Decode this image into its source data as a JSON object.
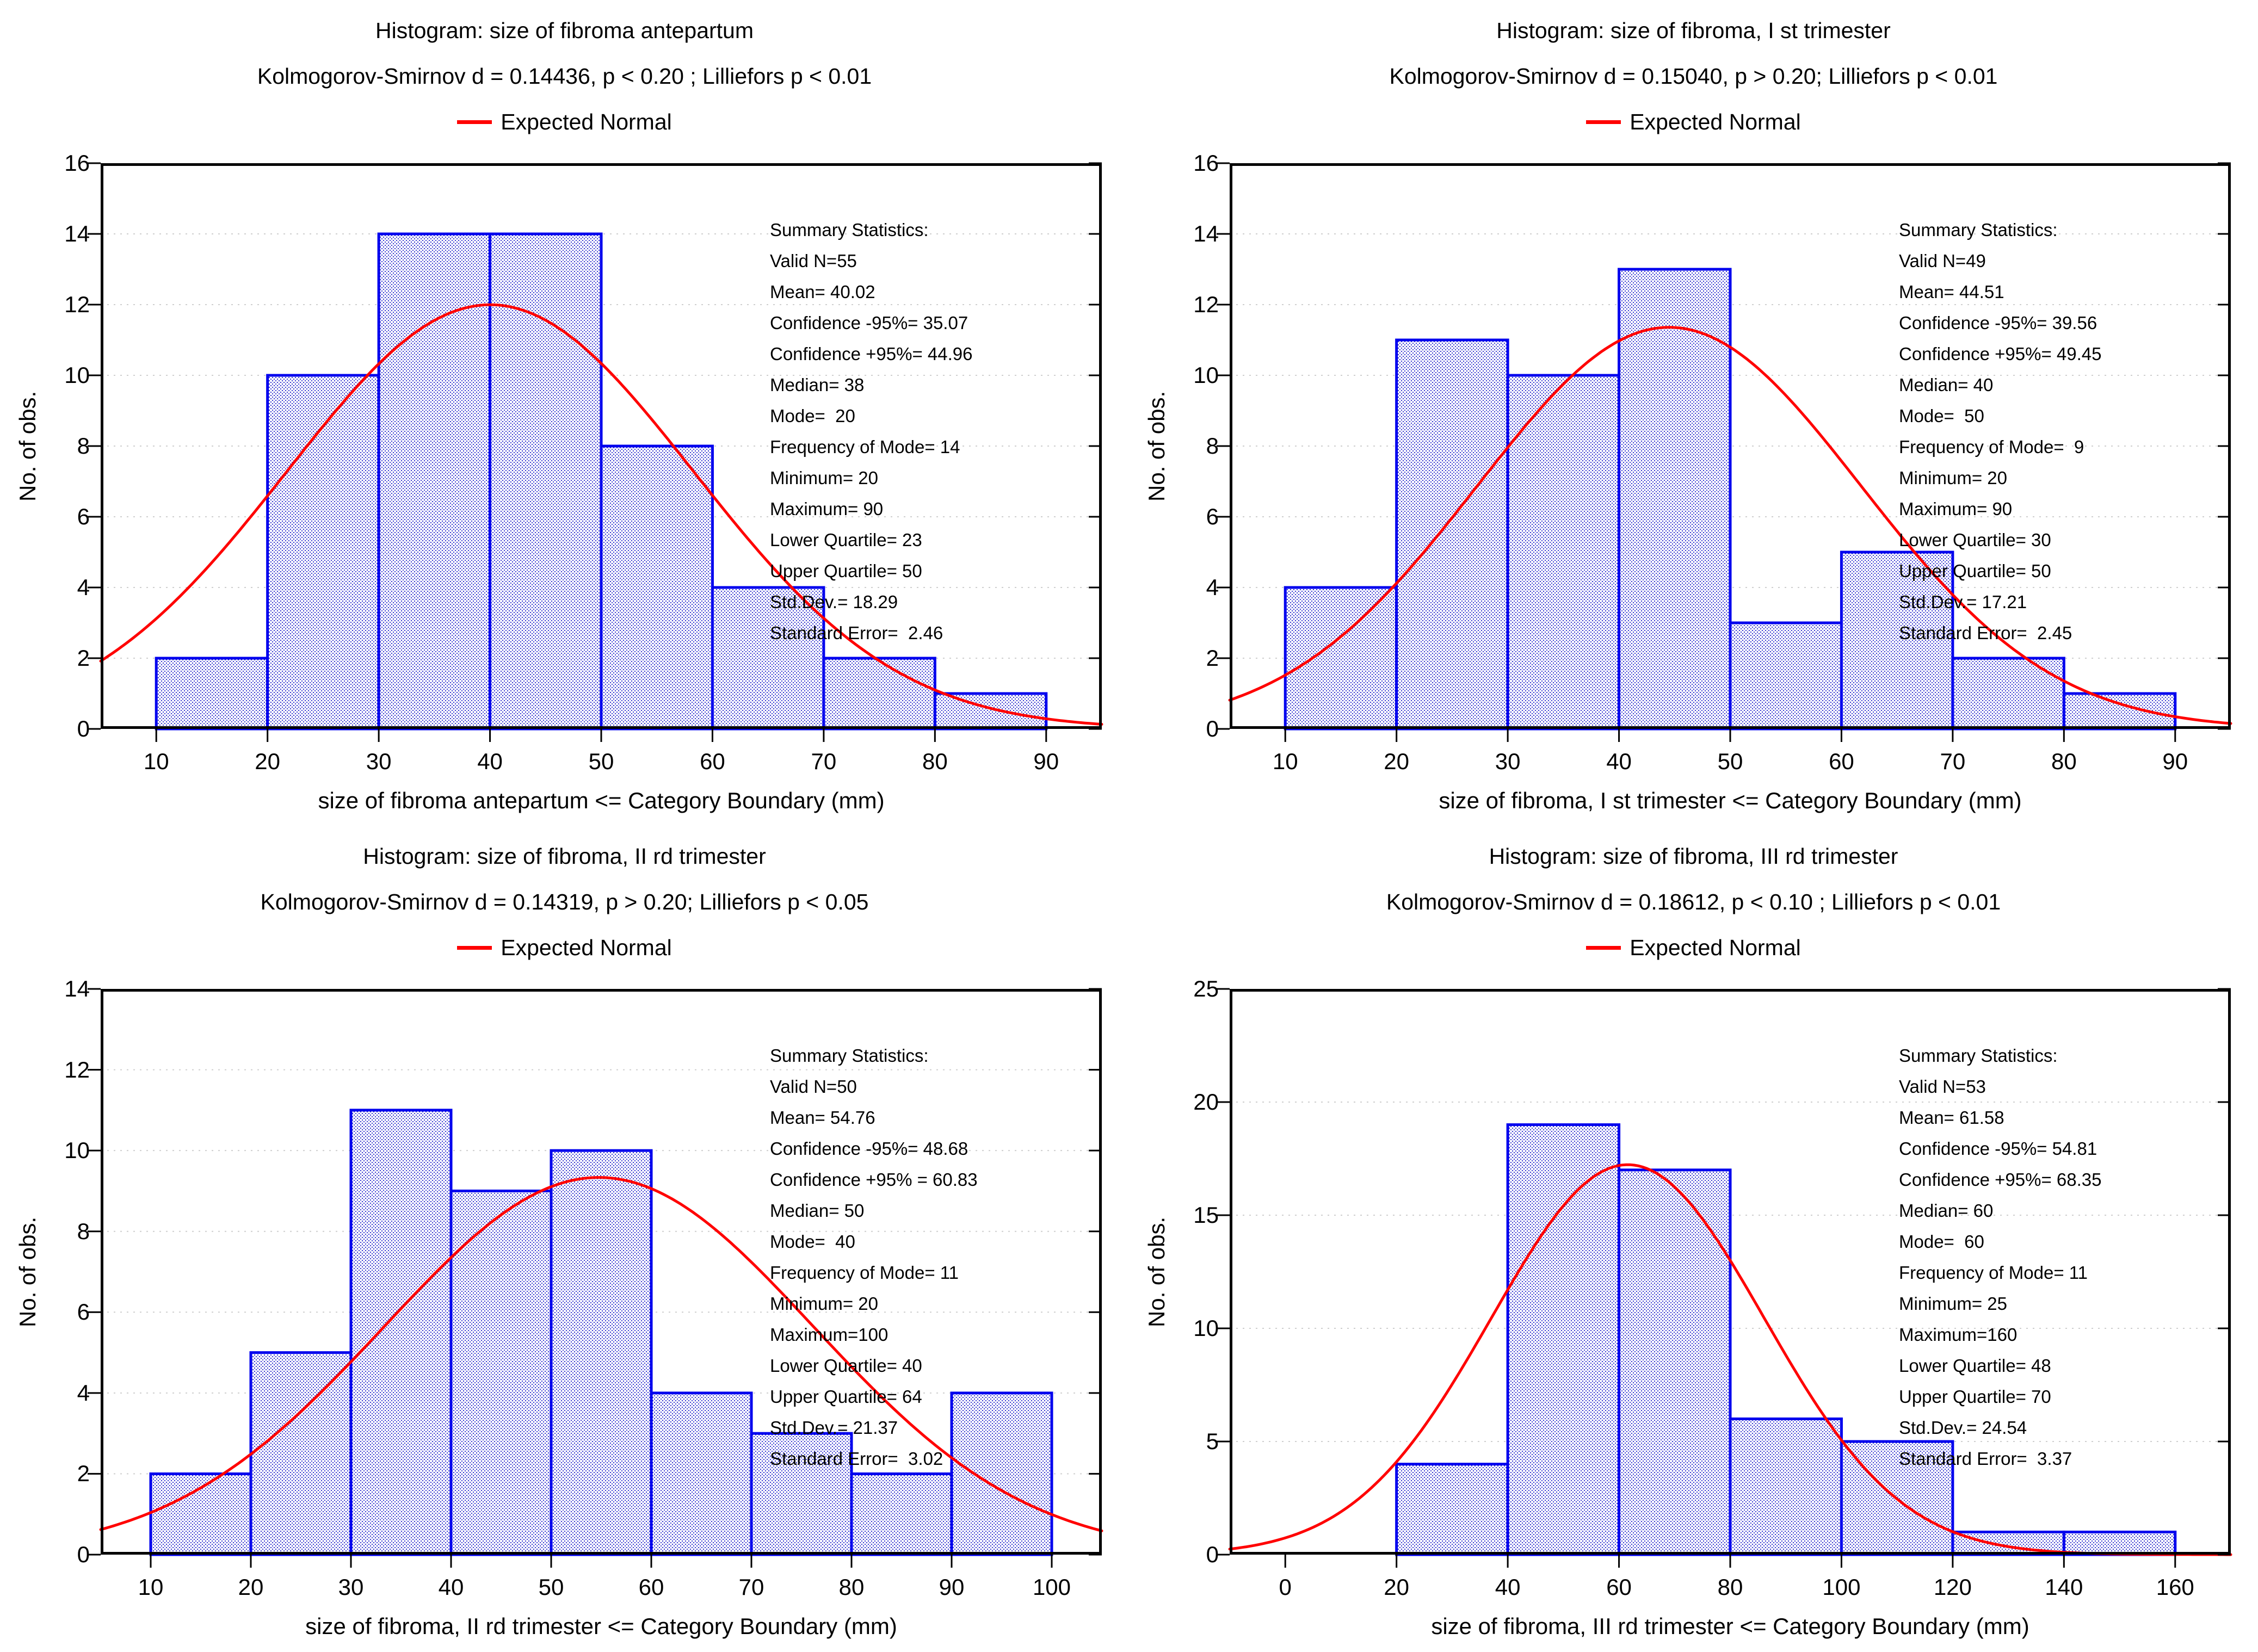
{
  "page": {
    "background": "#ffffff"
  },
  "colors": {
    "bar_edge": "#0000ee",
    "bar_fill_dot": "#2222cc",
    "curve": "#ff0000",
    "grid": "#cfcfcf",
    "axis": "#000000",
    "text": "#000000"
  },
  "charts": [
    {
      "title": "Histogram: size of fibroma antepartum",
      "ks_line": "Kolmogorov-Smirnov d = 0.14436, p < 0.20 ; Lilliefors p < 0.01",
      "legend_label": "Expected Normal",
      "ylabel": "No. of obs.",
      "xlabel": "size of fibroma antepartum <= Category Boundary (mm)",
      "chart_data": {
        "type": "bar",
        "subtype": "histogram-with-expected-normal",
        "xlim": [
          5,
          95
        ],
        "ylim": [
          0,
          16
        ],
        "y_tick_step": 2,
        "x_ticks": [
          10,
          20,
          30,
          40,
          50,
          60,
          70,
          80,
          90
        ],
        "bars": {
          "bin_edges": [
            10,
            20,
            30,
            40,
            50,
            60,
            70,
            80,
            90
          ],
          "counts": [
            2,
            10,
            14,
            14,
            8,
            4,
            2,
            1
          ]
        },
        "normal_curve": {
          "mean": 40.02,
          "std_dev": 18.29,
          "n": 55,
          "bin_width": 10
        }
      },
      "summary_stats": {
        "lines": [
          "Summary Statistics:",
          "Valid N=55",
          "Mean= 40.02",
          "Confidence -95%= 35.07",
          "Confidence +95%= 44.96",
          "Median= 38",
          "Mode=  20",
          "Frequency of Mode= 14",
          "Minimum= 20",
          "Maximum= 90",
          "Lower Quartile= 23",
          "Upper Quartile= 50",
          "Std.Dev.= 18.29",
          "Standard Error=  2.46"
        ]
      }
    },
    {
      "title": "Histogram: size of fibroma, I st trimester",
      "ks_line": "Kolmogorov-Smirnov d = 0.15040, p > 0.20; Lilliefors p < 0.01",
      "legend_label": "Expected Normal",
      "ylabel": "No. of obs.",
      "xlabel": "size of fibroma, I st trimester <= Category Boundary (mm)",
      "chart_data": {
        "type": "bar",
        "subtype": "histogram-with-expected-normal",
        "xlim": [
          5,
          95
        ],
        "ylim": [
          0,
          16
        ],
        "y_tick_step": 2,
        "x_ticks": [
          10,
          20,
          30,
          40,
          50,
          60,
          70,
          80,
          90
        ],
        "bars": {
          "bin_edges": [
            10,
            20,
            30,
            40,
            50,
            60,
            70,
            80,
            90
          ],
          "counts": [
            4,
            11,
            10,
            13,
            3,
            5,
            2,
            1
          ]
        },
        "normal_curve": {
          "mean": 44.51,
          "std_dev": 17.21,
          "n": 49,
          "bin_width": 10
        }
      },
      "summary_stats": {
        "lines": [
          "Summary Statistics:",
          "Valid N=49",
          "Mean= 44.51",
          "Confidence -95%= 39.56",
          "Confidence +95%= 49.45",
          "Median= 40",
          "Mode=  50",
          "Frequency of Mode=  9",
          "Minimum= 20",
          "Maximum= 90",
          "Lower Quartile= 30",
          "Upper Quartile= 50",
          "Std.Dev.= 17.21",
          "Standard Error=  2.45"
        ]
      }
    },
    {
      "title": "Histogram: size of fibroma, II rd trimester",
      "ks_line": "Kolmogorov-Smirnov d = 0.14319, p > 0.20; Lilliefors p < 0.05",
      "legend_label": "Expected Normal",
      "ylabel": "No. of obs.",
      "xlabel": "size of fibroma, II rd trimester  <= Category Boundary (mm)",
      "chart_data": {
        "type": "bar",
        "subtype": "histogram-with-expected-normal",
        "xlim": [
          5,
          105
        ],
        "ylim": [
          0,
          14
        ],
        "y_tick_step": 2,
        "x_ticks": [
          10,
          20,
          30,
          40,
          50,
          60,
          70,
          80,
          90,
          100
        ],
        "bars": {
          "bin_edges": [
            10,
            20,
            30,
            40,
            50,
            60,
            70,
            80,
            90,
            100
          ],
          "counts": [
            2,
            5,
            11,
            9,
            10,
            4,
            3,
            2,
            4
          ]
        },
        "normal_curve": {
          "mean": 54.76,
          "std_dev": 21.37,
          "n": 50,
          "bin_width": 10
        }
      },
      "summary_stats": {
        "lines": [
          "Summary Statistics:",
          "Valid N=50",
          "Mean= 54.76",
          "Confidence -95%= 48.68",
          "Confidence +95% = 60.83",
          "Median= 50",
          "Mode=  40",
          "Frequency of Mode= 11",
          "Minimum= 20",
          "Maximum=100",
          "Lower Quartile= 40",
          "Upper Quartile= 64",
          "Std.Dev.= 21.37",
          "Standard Error=  3.02"
        ]
      }
    },
    {
      "title": "Histogram: size of fibroma, III rd trimester",
      "ks_line": "Kolmogorov-Smirnov d = 0.18612, p < 0.10 ; Lilliefors p < 0.01",
      "legend_label": "Expected Normal",
      "ylabel": "No. of obs.",
      "xlabel": "size of fibroma, III rd trimester <= Category Boundary (mm)",
      "chart_data": {
        "type": "bar",
        "subtype": "histogram-with-expected-normal",
        "xlim": [
          -10,
          170
        ],
        "ylim": [
          0,
          25
        ],
        "y_tick_step": 5,
        "x_ticks": [
          0,
          20,
          40,
          60,
          80,
          100,
          120,
          140,
          160
        ],
        "bars": {
          "bin_edges": [
            20,
            40,
            60,
            80,
            100,
            120,
            140,
            160
          ],
          "counts": [
            4,
            19,
            17,
            6,
            5,
            1,
            1
          ]
        },
        "normal_curve": {
          "mean": 61.58,
          "std_dev": 24.54,
          "n": 53,
          "bin_width": 20
        }
      },
      "summary_stats": {
        "lines": [
          "Summary Statistics:",
          "Valid N=53",
          "Mean= 61.58",
          "Confidence -95%= 54.81",
          "Confidence +95%= 68.35",
          "Median= 60",
          "Mode=  60",
          "Frequency of Mode= 11",
          "Minimum= 25",
          "Maximum=160",
          "Lower Quartile= 48",
          "Upper Quartile= 70",
          "Std.Dev.= 24.54",
          "Standard Error=  3.37"
        ]
      }
    }
  ]
}
